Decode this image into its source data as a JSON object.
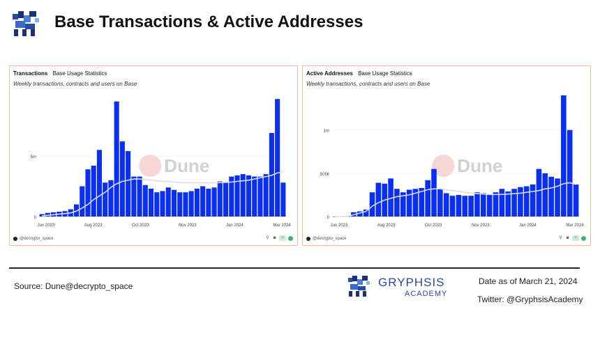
{
  "header": {
    "title": "Base Transactions & Active Addresses",
    "logo_icon": "gryphon-logo-icon"
  },
  "colors": {
    "bar": "#0a2ff0",
    "avg_line": "#d8dce8",
    "panel_border": "#f2b8a6",
    "brand": "#2a4aa0",
    "watermark": "#c9c9c9"
  },
  "watermarks": {
    "dune": "Dune"
  },
  "panels": [
    {
      "title": "Transactions",
      "source_label": "Base Usage Statistics",
      "subtitle": "Weekly transactions, contracts and users on Base",
      "credit": "@decrypto_space"
    },
    {
      "title": "Active Addresses",
      "source_label": "Base Usage Statistics",
      "subtitle": "Weekly transactions, contracts and users on Base",
      "credit": "@decrypto_space"
    }
  ],
  "chart_data": [
    {
      "type": "bar",
      "x_tick_labels": [
        "Jun 2023",
        "Aug 2023",
        "Oct 2023",
        "Nov 2023",
        "Jan 2024",
        "Mar 2024"
      ],
      "y_tick_labels": [
        "0",
        "5m"
      ],
      "y_ticks": [
        0,
        5000000
      ],
      "ylim": [
        0,
        10000000
      ],
      "series": [
        {
          "values": [
            200000,
            300000,
            350000,
            400000,
            450000,
            600000,
            1000000,
            2500000,
            3900000,
            4200000,
            5500000,
            2800000,
            3000000,
            9500000,
            6200000,
            5400000,
            3300000,
            3300000,
            2600000,
            2300000,
            2000000,
            2100000,
            2400000,
            2200000,
            2000000,
            2000000,
            2100000,
            2300000,
            2500000,
            2300000,
            2400000,
            2900000,
            2800000,
            3300000,
            3400000,
            3500000,
            3400000,
            3300000,
            3300000,
            3500000,
            6900000,
            9700000,
            2800000
          ]
        },
        {
          "values": [
            50000,
            100000,
            150000,
            200000,
            250000,
            300000,
            450000,
            700000,
            1000000,
            1400000,
            1700000,
            2000000,
            2400000,
            2700000,
            2900000,
            3000000,
            3100000,
            3100000,
            3050000,
            3000000,
            2950000,
            2900000,
            2900000,
            2850000,
            2800000,
            2800000,
            2800000,
            2800000,
            2780000,
            2780000,
            2780000,
            2800000,
            2820000,
            2850000,
            2900000,
            2950000,
            3000000,
            3100000,
            3200000,
            3300000,
            3400000,
            3600000,
            3700000
          ]
        }
      ]
    },
    {
      "type": "bar",
      "x_tick_labels": [
        "Jun 2023",
        "Aug 2023",
        "Oct 2023",
        "Nov 2023",
        "Jan 2024",
        "Mar 2024"
      ],
      "y_tick_labels": [
        "0",
        "500k",
        "1m"
      ],
      "y_ticks": [
        0,
        500000,
        1000000
      ],
      "ylim": [
        0,
        1400000
      ],
      "series": [
        {
          "values": [
            0,
            0,
            0,
            50000,
            60000,
            80000,
            280000,
            390000,
            380000,
            440000,
            320000,
            280000,
            310000,
            320000,
            330000,
            420000,
            550000,
            320000,
            270000,
            240000,
            250000,
            240000,
            240000,
            280000,
            270000,
            260000,
            280000,
            320000,
            290000,
            320000,
            340000,
            350000,
            370000,
            550000,
            500000,
            460000,
            440000,
            1400000,
            1000000,
            370000
          ]
        },
        {
          "values": [
            0,
            0,
            0,
            20000,
            40000,
            60000,
            120000,
            160000,
            190000,
            210000,
            230000,
            240000,
            250000,
            270000,
            290000,
            310000,
            320000,
            320000,
            310000,
            300000,
            290000,
            280000,
            270000,
            265000,
            260000,
            255000,
            255000,
            255000,
            260000,
            265000,
            270000,
            280000,
            290000,
            300000,
            320000,
            330000,
            350000,
            380000,
            390000,
            370000
          ]
        }
      ]
    }
  ],
  "footer": {
    "source": "Source: Dune@decrypto_space",
    "brand_name": "GRYPHSIS",
    "brand_sub": "ACADEMY",
    "date_note": "Date as of March 21, 2024",
    "twitter": "Twitter: @GryphsisAcademy"
  }
}
